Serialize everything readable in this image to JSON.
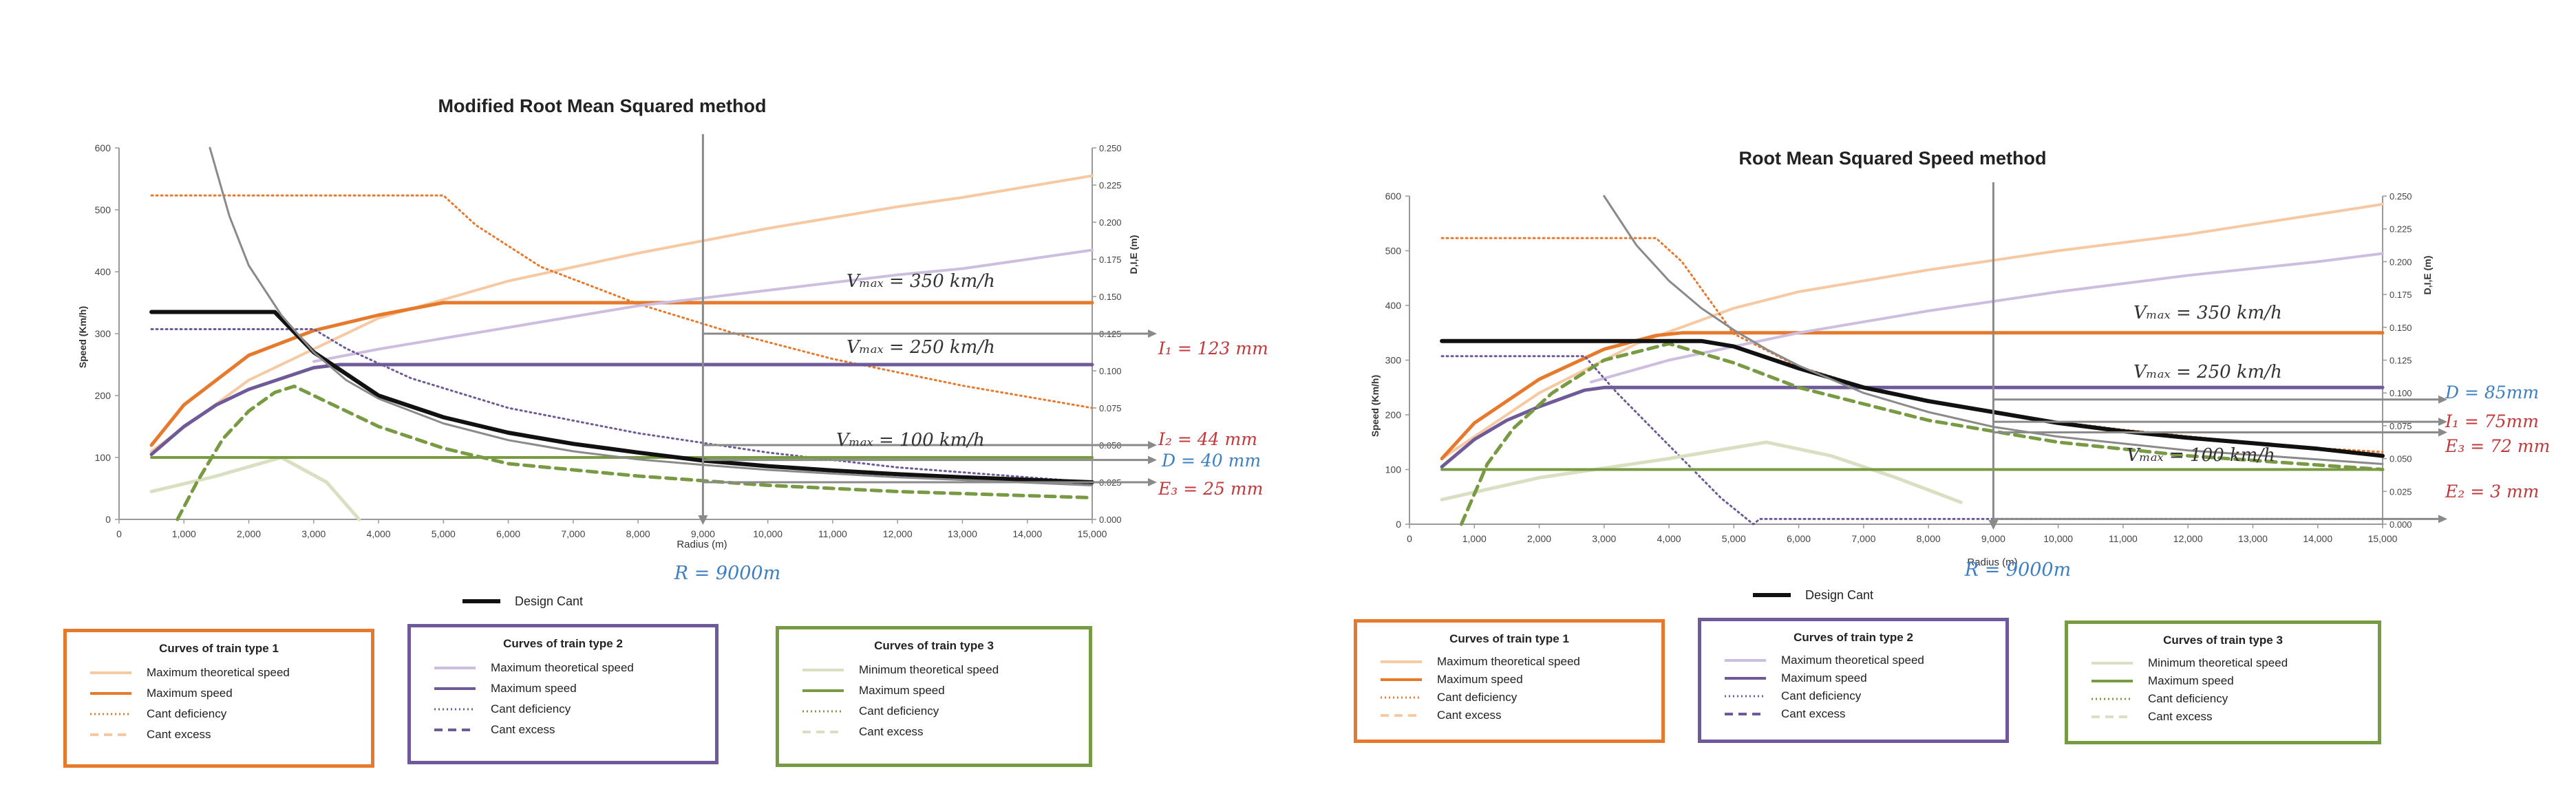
{
  "colors": {
    "orange": "#e6792b",
    "orange_light": "#f6c9a3",
    "purple": "#6e5a98",
    "purple_light": "#cdbedf",
    "green": "#779a42",
    "green_light": "#d9e0c2",
    "black": "#111111",
    "grey": "#8a8a8a",
    "red_note": "#c0393b",
    "blue_note": "#3d7fc1"
  },
  "chart_data": [
    {
      "type": "line",
      "title": "Modified Root Mean Squared  method",
      "xlabel": "Radius (m)",
      "ylabel": "Speed   (Km/h)",
      "y2label": "D,I,E   (m)",
      "xlim": [
        0,
        15000
      ],
      "ylim": [
        0,
        600
      ],
      "y2lim": [
        0,
        0.25
      ],
      "x_ticks": [
        "0",
        "1,000",
        "2,000",
        "3,000",
        "4,000",
        "5,000",
        "6,000",
        "7,000",
        "8,000",
        "9,000",
        "10,000",
        "11,000",
        "12,000",
        "13,000",
        "14,000",
        "15,000"
      ],
      "y_ticks": [
        "0",
        "100",
        "200",
        "300",
        "400",
        "500",
        "600"
      ],
      "y2_ticks": [
        "0.000",
        "0.025",
        "0.050",
        "0.075",
        "0.100",
        "0.125",
        "0.150",
        "0.175",
        "0.200",
        "0.225",
        "0.250"
      ],
      "grid": false,
      "vline_x": 9000,
      "vline_label": "R = 9000m",
      "series": [
        {
          "name": "Type 1 Maximum theoretical speed",
          "axis": "y",
          "style": "orange_light",
          "x": [
            500,
            2000,
            4000,
            6000,
            8000,
            10000,
            12000,
            13000,
            15000
          ],
          "y": [
            110,
            225,
            325,
            385,
            430,
            470,
            505,
            520,
            555
          ]
        },
        {
          "name": "Type 1 Maximum speed",
          "axis": "y",
          "style": "orange",
          "x": [
            500,
            1000,
            2000,
            3000,
            4000,
            5000,
            9000,
            15000
          ],
          "y": [
            120,
            185,
            265,
            305,
            330,
            350,
            350,
            350
          ]
        },
        {
          "name": "Type 1 Cant deficiency",
          "axis": "y2",
          "style": "orange_dot",
          "x": [
            500,
            5000,
            5500,
            6500,
            8000,
            9500,
            11000,
            13000,
            15000
          ],
          "y": [
            0.218,
            0.218,
            0.198,
            0.17,
            0.145,
            0.125,
            0.108,
            0.09,
            0.075
          ]
        },
        {
          "name": "Type 2 Maximum theoretical speed",
          "axis": "y",
          "style": "purple_light",
          "x": [
            3000,
            4000,
            6000,
            8000,
            10000,
            12000,
            13000,
            15000
          ],
          "y": [
            255,
            275,
            310,
            345,
            370,
            395,
            405,
            435
          ]
        },
        {
          "name": "Type 2 Maximum speed",
          "axis": "y",
          "style": "purple",
          "x": [
            500,
            1000,
            1500,
            2000,
            3000,
            3400,
            15000
          ],
          "y": [
            105,
            150,
            185,
            210,
            245,
            250,
            250
          ]
        },
        {
          "name": "Type 2 Cant deficiency",
          "axis": "y2",
          "style": "purple_dot",
          "x": [
            500,
            3000,
            3500,
            4500,
            6000,
            8000,
            10000,
            12000,
            15000
          ],
          "y": [
            0.128,
            0.128,
            0.115,
            0.095,
            0.075,
            0.058,
            0.045,
            0.035,
            0.025
          ]
        },
        {
          "name": "Type 3 Minimum theoretical speed",
          "axis": "y",
          "style": "green_light",
          "x": [
            500,
            1500,
            2500,
            3200,
            3700
          ],
          "y": [
            45,
            70,
            100,
            60,
            0
          ]
        },
        {
          "name": "Type 3 Maximum speed",
          "axis": "y",
          "style": "green",
          "x": [
            500,
            15000
          ],
          "y": [
            100,
            100
          ]
        },
        {
          "name": "Type 3 Cant excess",
          "axis": "y",
          "style": "green_dash",
          "x": [
            900,
            1200,
            1600,
            2000,
            2400,
            2700,
            3000,
            4000,
            5000,
            6000,
            8000,
            10000,
            12000,
            15000
          ],
          "y": [
            0,
            60,
            130,
            175,
            205,
            215,
            200,
            150,
            115,
            90,
            70,
            55,
            45,
            35
          ]
        },
        {
          "name": "Design Cant",
          "axis": "y",
          "style": "black",
          "x": [
            500,
            2400,
            3000,
            4000,
            5000,
            6000,
            7000,
            8000,
            9000,
            10000,
            11000,
            12000,
            13000,
            14000,
            15000
          ],
          "y": [
            335,
            335,
            270,
            200,
            165,
            140,
            122,
            108,
            95,
            86,
            79,
            73,
            68,
            64,
            60
          ]
        },
        {
          "name": "Grey reference",
          "axis": "y",
          "style": "grey",
          "x": [
            1400,
            1700,
            2000,
            2500,
            3000,
            3500,
            4000,
            5000,
            6000,
            7000,
            8000,
            9000,
            10000,
            12000,
            15000
          ],
          "y": [
            600,
            490,
            410,
            330,
            270,
            225,
            195,
            155,
            128,
            110,
            97,
            88,
            80,
            68,
            55
          ]
        }
      ],
      "notes": [
        {
          "math": "V_max = 350 km/h",
          "text": "𝑉ₘₐₓ = 350 𝑘𝑚/ℎ"
        },
        {
          "math": "V_max = 250 km/h",
          "text": "𝑉ₘₐₓ = 250 𝑘𝑚/ℎ"
        },
        {
          "math": "V_max = 100 km/h",
          "text": "𝑉ₘₐₓ = 100 𝑘𝑚/ℎ"
        },
        {
          "text": "𝐼₁ = 123 𝑚𝑚",
          "color": "red_note"
        },
        {
          "text": "𝐼₂ = 44 𝑚𝑚",
          "color": "red_note"
        },
        {
          "text": "𝐷 = 40 𝑚𝑚",
          "color": "blue_note"
        },
        {
          "text": "𝐸₃ = 25 𝑚𝑚",
          "color": "red_note"
        }
      ]
    },
    {
      "type": "line",
      "title": "Root Mean Squared Speed method",
      "xlabel": "Radius (m)",
      "ylabel": "Speed (Km/h)",
      "y2label": "D,I,E   (m)",
      "xlim": [
        0,
        15000
      ],
      "ylim": [
        0,
        600
      ],
      "y2lim": [
        0,
        0.25
      ],
      "x_ticks": [
        "0",
        "1,000",
        "2,000",
        "3,000",
        "4,000",
        "5,000",
        "6,000",
        "7,000",
        "8,000",
        "9,000",
        "10,000",
        "11,000",
        "12,000",
        "13,000",
        "14,000",
        "15,000"
      ],
      "y_ticks": [
        "0",
        "100",
        "200",
        "300",
        "400",
        "500",
        "600"
      ],
      "y2_ticks": [
        "0.000",
        "0.025",
        "0.050",
        "0.075",
        "0.100",
        "0.125",
        "0.150",
        "0.175",
        "0.200",
        "0.225",
        "0.250"
      ],
      "grid": false,
      "vline_x": 9000,
      "vline_label": "R = 9000m",
      "series": [
        {
          "name": "Type 1 Maximum theoretical speed",
          "axis": "y",
          "style": "orange_light",
          "x": [
            500,
            2000,
            3500,
            5000,
            6000,
            8000,
            10000,
            12000,
            15000
          ],
          "y": [
            120,
            240,
            330,
            395,
            425,
            465,
            500,
            530,
            585
          ]
        },
        {
          "name": "Type 1 Maximum speed",
          "axis": "y",
          "style": "orange",
          "x": [
            500,
            1000,
            2000,
            3000,
            3800,
            4200,
            15000
          ],
          "y": [
            120,
            185,
            265,
            320,
            345,
            350,
            350
          ]
        },
        {
          "name": "Type 1 Cant deficiency",
          "axis": "y2",
          "style": "orange_dot",
          "x": [
            500,
            3800,
            4200,
            5000,
            6000,
            7000,
            8000,
            9000,
            10000,
            11000,
            12000,
            13000,
            14000,
            15000
          ],
          "y": [
            0.218,
            0.218,
            0.2,
            0.145,
            0.12,
            0.105,
            0.093,
            0.085,
            0.078,
            0.072,
            0.067,
            0.062,
            0.058,
            0.055
          ]
        },
        {
          "name": "Type 2 Maximum theoretical speed",
          "axis": "y",
          "style": "purple_light",
          "x": [
            2800,
            4000,
            6000,
            8000,
            10000,
            12000,
            14000,
            15000
          ],
          "y": [
            260,
            300,
            350,
            390,
            425,
            455,
            480,
            495
          ]
        },
        {
          "name": "Type 2 Maximum speed",
          "axis": "y",
          "style": "purple",
          "x": [
            500,
            1000,
            1500,
            2000,
            2700,
            3000,
            15000
          ],
          "y": [
            105,
            155,
            190,
            215,
            245,
            250,
            250
          ]
        },
        {
          "name": "Type 2 Cant deficiency",
          "axis": "y2",
          "style": "purple_dot",
          "x": [
            500,
            2700,
            3200,
            4000,
            4800,
            5300,
            5400,
            6000,
            15000
          ],
          "y": [
            0.128,
            0.128,
            0.1,
            0.06,
            0.02,
            0.0,
            0.004,
            0.004,
            0.004
          ]
        },
        {
          "name": "Type 3 Minimum theoretical speed",
          "axis": "y",
          "style": "green_light",
          "x": [
            500,
            2000,
            4000,
            5500,
            6500,
            7500,
            8500
          ],
          "y": [
            45,
            85,
            120,
            150,
            125,
            85,
            40
          ]
        },
        {
          "name": "Type 3 Maximum speed",
          "axis": "y",
          "style": "green",
          "x": [
            500,
            15000
          ],
          "y": [
            100,
            100
          ]
        },
        {
          "name": "Type 3 Cant excess",
          "axis": "y",
          "style": "green_dash",
          "x": [
            800,
            1200,
            1600,
            2200,
            3000,
            4000,
            5000,
            6000,
            8000,
            10000,
            12000,
            15000
          ],
          "y": [
            0,
            110,
            175,
            240,
            300,
            330,
            295,
            250,
            190,
            150,
            125,
            100
          ]
        },
        {
          "name": "Design Cant",
          "axis": "y",
          "style": "black",
          "x": [
            500,
            4500,
            5000,
            6000,
            7000,
            8000,
            9000,
            10000,
            11000,
            12000,
            13000,
            14000,
            15000
          ],
          "y": [
            335,
            335,
            325,
            285,
            250,
            225,
            205,
            185,
            170,
            158,
            148,
            138,
            125
          ]
        },
        {
          "name": "Grey reference",
          "axis": "y",
          "style": "grey",
          "x": [
            3000,
            3500,
            4000,
            4500,
            5000,
            5500,
            6000,
            7000,
            8000,
            9000,
            10000,
            12000,
            15000
          ],
          "y": [
            600,
            510,
            445,
            395,
            355,
            320,
            290,
            240,
            205,
            178,
            160,
            135,
            110
          ]
        }
      ],
      "notes": [
        {
          "math": "V_max = 350 km/h",
          "text": "𝑉ₘₐₓ = 350 𝑘𝑚/ℎ"
        },
        {
          "math": "V_max = 250 km/h",
          "text": "𝑉ₘₐₓ = 250 𝑘𝑚/ℎ"
        },
        {
          "math": "V_max = 100 km/h",
          "text": "𝑉ₘₐₓ = 100 𝑘𝑚/ℎ"
        },
        {
          "text": "𝐷 = 85𝑚𝑚",
          "color": "blue_note"
        },
        {
          "text": "𝐼₁ = 75𝑚𝑚",
          "color": "red_note"
        },
        {
          "text": "𝐸₃ = 72 𝑚𝑚",
          "color": "red_note"
        },
        {
          "text": "𝐸₂ = 3 𝑚𝑚",
          "color": "red_note"
        }
      ]
    }
  ],
  "legend": {
    "design_cant": "Design Cant",
    "charts": [
      {
        "groups": [
          {
            "title": "Curves of train type 1",
            "items": [
              "Maximum theoretical speed",
              "Maximum speed",
              "Cant deficiency",
              "Cant excess"
            ]
          },
          {
            "title": "Curves of train type 2",
            "items": [
              "Maximum theoretical speed",
              "Maximum speed",
              "Cant deficiency",
              "Cant excess"
            ]
          },
          {
            "title": "Curves of train type 3",
            "items": [
              "Minimum theoretical speed",
              "Maximum speed",
              "Cant deficiency",
              "Cant excess"
            ]
          }
        ]
      },
      {
        "groups": [
          {
            "title": "Curves of train type 1",
            "items": [
              "Maximum theoretical speed",
              "Maximum speed",
              "Cant deficiency",
              "Cant excess"
            ]
          },
          {
            "title": "Curves of train type 2",
            "items": [
              "Maximum theoretical speed",
              "Maximum speed",
              "Cant deficiency",
              "Cant excess"
            ]
          },
          {
            "title": "Curves of train type 3",
            "items": [
              "Minimum theoretical speed",
              "Maximum speed",
              "Cant deficiency",
              "Cant excess"
            ]
          }
        ]
      }
    ]
  }
}
